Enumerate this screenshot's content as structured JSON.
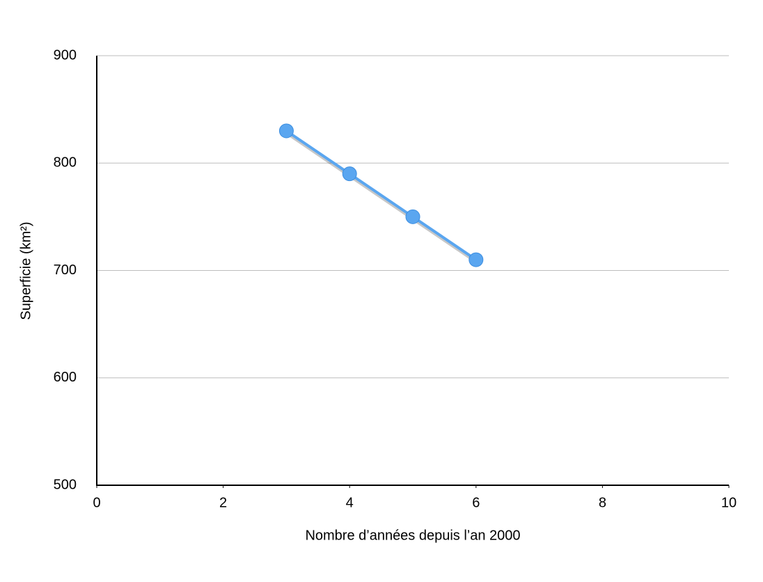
{
  "chart_data": {
    "type": "line",
    "x": [
      3,
      4,
      5,
      6
    ],
    "values": [
      830,
      790,
      750,
      710
    ],
    "color": "#5aa6f0",
    "xlabel": "Nombre d’années depuis l’an 2000",
    "ylabel": "Superficie (km²)",
    "xlim": [
      0,
      10
    ],
    "xticks": [
      0,
      2,
      4,
      6,
      8,
      10
    ],
    "ylim": [
      500,
      900
    ],
    "yticks": [
      500,
      600,
      700,
      800,
      900
    ],
    "grid": true
  }
}
